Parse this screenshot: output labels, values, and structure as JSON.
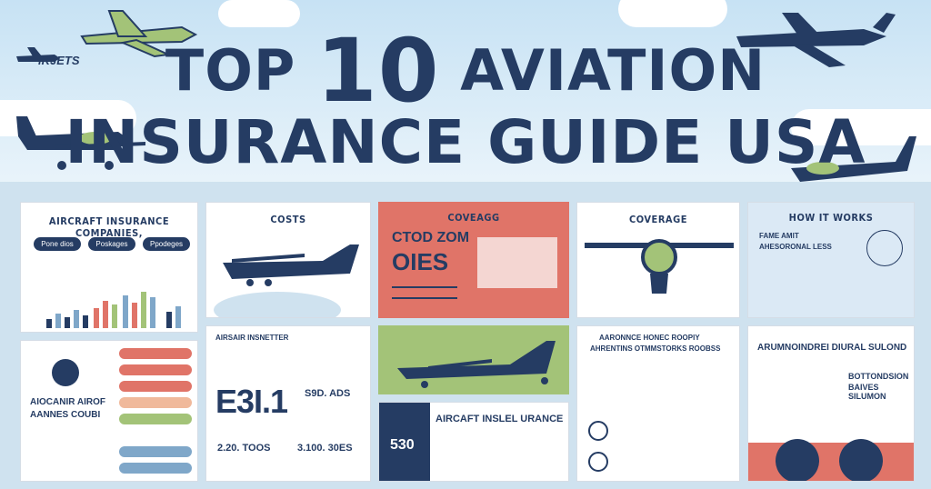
{
  "header": {
    "logo": "iKJETS",
    "title_word1": "TOP",
    "title_number": "10",
    "title_word2": "AVIATION",
    "title_line2": "INSURANCE GUIDE USA"
  },
  "cards": {
    "companies": {
      "title": "AIRCRAFT INSURANCE COMPANIES,",
      "pills": [
        "Pone dios",
        "Poskages",
        "Ppodeges"
      ]
    },
    "costs": {
      "title": "COSTS"
    },
    "coverage_red": {
      "title": "COVEAGG",
      "big1": "CTOD ZOM",
      "big2": "OIES"
    },
    "coverage": {
      "title": "COVERAGE"
    },
    "how": {
      "title": "HOW IT WORKS",
      "sub1": "FAME AMIT",
      "sub2": "AHESORONAL LESS"
    },
    "stats": {
      "label": "AIRSAIR INSNETTER",
      "big": "E3I.1",
      "n1": "S9D. ADS",
      "n2": "2.20. TOOS",
      "n3": "3.100. 30ES"
    },
    "airlines": {
      "title1": "AIOCANIR AIROF",
      "title2": "AANNES COUBI"
    },
    "plane_green": {},
    "insel": {
      "title": "AIRCAFT INSLEL URANCE",
      "num": "530"
    },
    "chart": {
      "title1": "AARONNCE HONEC ROOPIY",
      "title2": "AHRENTINS OTMMSTORKS ROOBSS"
    },
    "right_bottom": {
      "title": "ARUMNOINDREI DIURAL SULOND",
      "sub1": "BOTTONDSION",
      "sub2": "BAIVES SILUMON"
    }
  },
  "colors": {
    "navy": "#253c63",
    "red": "#e07468",
    "green": "#a3c378",
    "lightblue": "#cfe2ef"
  }
}
